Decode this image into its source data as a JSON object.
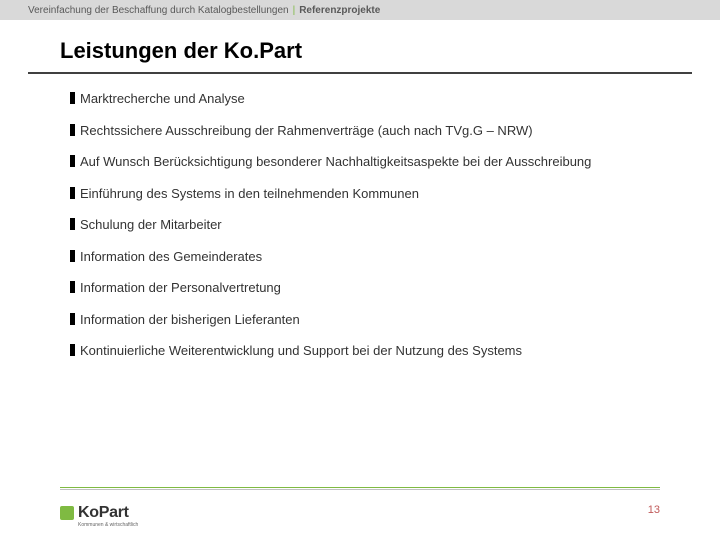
{
  "header": {
    "crumb1": "Vereinfachung der Beschaffung durch Katalogbestellungen",
    "crumb2": "Referenzprojekte"
  },
  "title": "Leistungen der Ko.Part",
  "bullets": [
    "Marktrecherche und Analyse",
    "Rechtssichere Ausschreibung der Rahmenverträge (auch nach TVg.G – NRW)",
    "Auf Wunsch Berücksichtigung besonderer Nachhaltigkeitsaspekte bei der Ausschreibung",
    "Einführung des Systems in den teilnehmenden Kommunen",
    "Schulung der Mitarbeiter",
    "Information des Gemeinderates",
    "Information der Personalvertretung",
    "Information der bisherigen Lieferanten",
    "Kontinuierliche Weiterentwicklung und Support bei der Nutzung des Systems"
  ],
  "logo": {
    "text": "KoPart",
    "sub": "Kommunen & wirtschaftlich"
  },
  "pagenum": "13",
  "colors": {
    "accent": "#7fba42"
  }
}
